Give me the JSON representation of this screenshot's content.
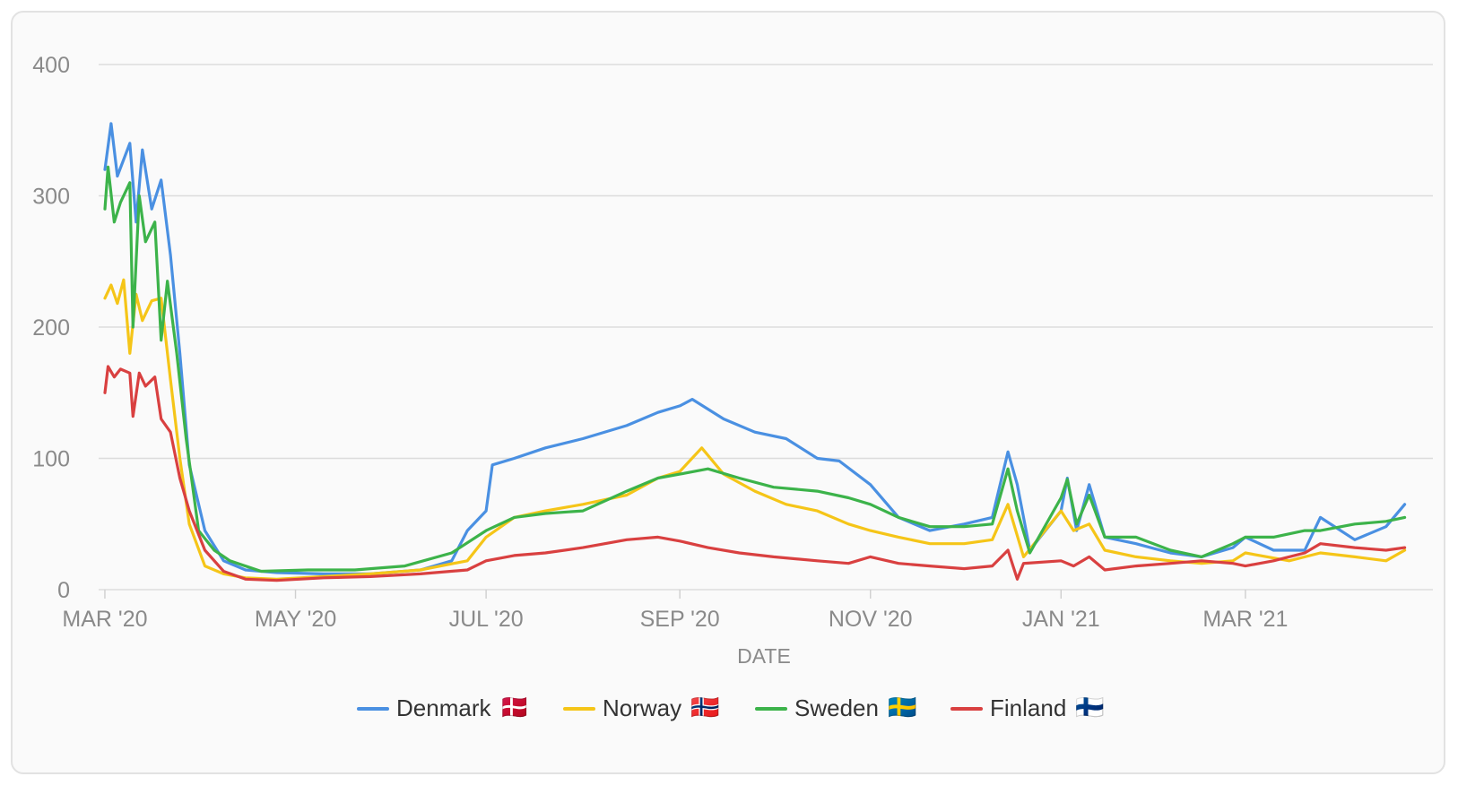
{
  "chart_data": {
    "type": "line",
    "xlabel": "DATE",
    "ylabel": "",
    "ylim": [
      0,
      400
    ],
    "yticks": [
      "0",
      "100",
      "200",
      "300",
      "400"
    ],
    "xlim": [
      "2020-02-28",
      "2021-04-30"
    ],
    "xticks": [
      {
        "date": "2020-03-01",
        "label": "MAR '20"
      },
      {
        "date": "2020-05-01",
        "label": "MAY '20"
      },
      {
        "date": "2020-07-01",
        "label": "JUL '20"
      },
      {
        "date": "2020-09-01",
        "label": "SEP '20"
      },
      {
        "date": "2020-11-01",
        "label": "NOV '20"
      },
      {
        "date": "2021-01-01",
        "label": "JAN '21"
      },
      {
        "date": "2021-03-01",
        "label": "MAR '21"
      }
    ],
    "grid": true,
    "legend_position": "bottom",
    "series": [
      {
        "name": "Denmark",
        "flag": "🇩🇰",
        "color": "#4a90e2",
        "points": [
          [
            "2020-03-01",
            320
          ],
          [
            "2020-03-03",
            355
          ],
          [
            "2020-03-05",
            315
          ],
          [
            "2020-03-09",
            340
          ],
          [
            "2020-03-11",
            280
          ],
          [
            "2020-03-13",
            335
          ],
          [
            "2020-03-16",
            290
          ],
          [
            "2020-03-19",
            312
          ],
          [
            "2020-03-22",
            255
          ],
          [
            "2020-03-25",
            180
          ],
          [
            "2020-03-28",
            95
          ],
          [
            "2020-04-02",
            45
          ],
          [
            "2020-04-08",
            22
          ],
          [
            "2020-04-15",
            15
          ],
          [
            "2020-04-25",
            13
          ],
          [
            "2020-05-10",
            12
          ],
          [
            "2020-05-25",
            12
          ],
          [
            "2020-06-10",
            15
          ],
          [
            "2020-06-20",
            22
          ],
          [
            "2020-06-25",
            45
          ],
          [
            "2020-07-01",
            60
          ],
          [
            "2020-07-03",
            95
          ],
          [
            "2020-07-10",
            100
          ],
          [
            "2020-07-20",
            108
          ],
          [
            "2020-08-01",
            115
          ],
          [
            "2020-08-15",
            125
          ],
          [
            "2020-08-25",
            135
          ],
          [
            "2020-09-01",
            140
          ],
          [
            "2020-09-05",
            145
          ],
          [
            "2020-09-15",
            130
          ],
          [
            "2020-09-25",
            120
          ],
          [
            "2020-10-05",
            115
          ],
          [
            "2020-10-15",
            100
          ],
          [
            "2020-10-22",
            98
          ],
          [
            "2020-11-01",
            80
          ],
          [
            "2020-11-10",
            55
          ],
          [
            "2020-11-20",
            45
          ],
          [
            "2020-12-01",
            50
          ],
          [
            "2020-12-10",
            55
          ],
          [
            "2020-12-15",
            105
          ],
          [
            "2020-12-18",
            80
          ],
          [
            "2020-12-22",
            30
          ],
          [
            "2021-01-01",
            60
          ],
          [
            "2021-01-03",
            85
          ],
          [
            "2021-01-06",
            45
          ],
          [
            "2021-01-10",
            80
          ],
          [
            "2021-01-15",
            40
          ],
          [
            "2021-01-25",
            35
          ],
          [
            "2021-02-05",
            28
          ],
          [
            "2021-02-15",
            25
          ],
          [
            "2021-02-25",
            32
          ],
          [
            "2021-03-01",
            40
          ],
          [
            "2021-03-10",
            30
          ],
          [
            "2021-03-20",
            30
          ],
          [
            "2021-03-25",
            55
          ],
          [
            "2021-04-05",
            38
          ],
          [
            "2021-04-15",
            48
          ],
          [
            "2021-04-21",
            65
          ]
        ]
      },
      {
        "name": "Norway",
        "flag": "🇳🇴",
        "color": "#f5c518",
        "points": [
          [
            "2020-03-01",
            222
          ],
          [
            "2020-03-03",
            232
          ],
          [
            "2020-03-05",
            218
          ],
          [
            "2020-03-07",
            236
          ],
          [
            "2020-03-09",
            180
          ],
          [
            "2020-03-11",
            225
          ],
          [
            "2020-03-13",
            205
          ],
          [
            "2020-03-16",
            220
          ],
          [
            "2020-03-19",
            222
          ],
          [
            "2020-03-22",
            160
          ],
          [
            "2020-03-25",
            100
          ],
          [
            "2020-03-28",
            50
          ],
          [
            "2020-04-02",
            18
          ],
          [
            "2020-04-08",
            12
          ],
          [
            "2020-04-15",
            9
          ],
          [
            "2020-04-25",
            8
          ],
          [
            "2020-05-10",
            10
          ],
          [
            "2020-05-25",
            12
          ],
          [
            "2020-06-10",
            15
          ],
          [
            "2020-06-25",
            22
          ],
          [
            "2020-07-01",
            40
          ],
          [
            "2020-07-10",
            55
          ],
          [
            "2020-07-20",
            60
          ],
          [
            "2020-08-01",
            65
          ],
          [
            "2020-08-15",
            72
          ],
          [
            "2020-08-25",
            85
          ],
          [
            "2020-09-01",
            90
          ],
          [
            "2020-09-08",
            108
          ],
          [
            "2020-09-15",
            88
          ],
          [
            "2020-09-25",
            75
          ],
          [
            "2020-10-05",
            65
          ],
          [
            "2020-10-15",
            60
          ],
          [
            "2020-10-25",
            50
          ],
          [
            "2020-11-01",
            45
          ],
          [
            "2020-11-10",
            40
          ],
          [
            "2020-11-20",
            35
          ],
          [
            "2020-12-01",
            35
          ],
          [
            "2020-12-10",
            38
          ],
          [
            "2020-12-15",
            65
          ],
          [
            "2020-12-20",
            25
          ],
          [
            "2021-01-01",
            60
          ],
          [
            "2021-01-05",
            45
          ],
          [
            "2021-01-10",
            50
          ],
          [
            "2021-01-15",
            30
          ],
          [
            "2021-01-25",
            25
          ],
          [
            "2021-02-05",
            22
          ],
          [
            "2021-02-15",
            20
          ],
          [
            "2021-02-25",
            22
          ],
          [
            "2021-03-01",
            28
          ],
          [
            "2021-03-15",
            22
          ],
          [
            "2021-03-25",
            28
          ],
          [
            "2021-04-05",
            25
          ],
          [
            "2021-04-15",
            22
          ],
          [
            "2021-04-21",
            30
          ]
        ]
      },
      {
        "name": "Sweden",
        "flag": "🇸🇪",
        "color": "#3cb34a",
        "points": [
          [
            "2020-03-01",
            290
          ],
          [
            "2020-03-02",
            322
          ],
          [
            "2020-03-04",
            280
          ],
          [
            "2020-03-06",
            295
          ],
          [
            "2020-03-09",
            310
          ],
          [
            "2020-03-10",
            200
          ],
          [
            "2020-03-12",
            300
          ],
          [
            "2020-03-14",
            265
          ],
          [
            "2020-03-17",
            280
          ],
          [
            "2020-03-19",
            190
          ],
          [
            "2020-03-21",
            235
          ],
          [
            "2020-03-24",
            180
          ],
          [
            "2020-03-27",
            115
          ],
          [
            "2020-03-31",
            45
          ],
          [
            "2020-04-05",
            30
          ],
          [
            "2020-04-10",
            22
          ],
          [
            "2020-04-20",
            14
          ],
          [
            "2020-05-05",
            15
          ],
          [
            "2020-05-20",
            15
          ],
          [
            "2020-06-05",
            18
          ],
          [
            "2020-06-20",
            28
          ],
          [
            "2020-07-01",
            45
          ],
          [
            "2020-07-10",
            55
          ],
          [
            "2020-07-20",
            58
          ],
          [
            "2020-08-01",
            60
          ],
          [
            "2020-08-15",
            75
          ],
          [
            "2020-08-25",
            85
          ],
          [
            "2020-09-01",
            88
          ],
          [
            "2020-09-10",
            92
          ],
          [
            "2020-09-20",
            85
          ],
          [
            "2020-10-01",
            78
          ],
          [
            "2020-10-15",
            75
          ],
          [
            "2020-10-25",
            70
          ],
          [
            "2020-11-01",
            65
          ],
          [
            "2020-11-10",
            55
          ],
          [
            "2020-11-20",
            48
          ],
          [
            "2020-12-01",
            48
          ],
          [
            "2020-12-10",
            50
          ],
          [
            "2020-12-15",
            92
          ],
          [
            "2020-12-18",
            60
          ],
          [
            "2020-12-22",
            28
          ],
          [
            "2021-01-01",
            70
          ],
          [
            "2021-01-03",
            84
          ],
          [
            "2021-01-06",
            50
          ],
          [
            "2021-01-10",
            72
          ],
          [
            "2021-01-15",
            40
          ],
          [
            "2021-01-25",
            40
          ],
          [
            "2021-02-05",
            30
          ],
          [
            "2021-02-15",
            25
          ],
          [
            "2021-02-25",
            35
          ],
          [
            "2021-03-01",
            40
          ],
          [
            "2021-03-10",
            40
          ],
          [
            "2021-03-20",
            45
          ],
          [
            "2021-03-25",
            45
          ],
          [
            "2021-04-05",
            50
          ],
          [
            "2021-04-15",
            52
          ],
          [
            "2021-04-21",
            55
          ]
        ]
      },
      {
        "name": "Finland",
        "flag": "🇫🇮",
        "color": "#d94040",
        "points": [
          [
            "2020-03-01",
            150
          ],
          [
            "2020-03-02",
            170
          ],
          [
            "2020-03-04",
            162
          ],
          [
            "2020-03-06",
            168
          ],
          [
            "2020-03-09",
            165
          ],
          [
            "2020-03-10",
            132
          ],
          [
            "2020-03-12",
            165
          ],
          [
            "2020-03-14",
            155
          ],
          [
            "2020-03-17",
            162
          ],
          [
            "2020-03-19",
            130
          ],
          [
            "2020-03-22",
            120
          ],
          [
            "2020-03-25",
            85
          ],
          [
            "2020-03-28",
            60
          ],
          [
            "2020-04-02",
            30
          ],
          [
            "2020-04-08",
            14
          ],
          [
            "2020-04-15",
            8
          ],
          [
            "2020-04-25",
            7
          ],
          [
            "2020-05-10",
            9
          ],
          [
            "2020-05-25",
            10
          ],
          [
            "2020-06-10",
            12
          ],
          [
            "2020-06-25",
            15
          ],
          [
            "2020-07-01",
            22
          ],
          [
            "2020-07-10",
            26
          ],
          [
            "2020-07-20",
            28
          ],
          [
            "2020-08-01",
            32
          ],
          [
            "2020-08-15",
            38
          ],
          [
            "2020-08-25",
            40
          ],
          [
            "2020-09-01",
            37
          ],
          [
            "2020-09-10",
            32
          ],
          [
            "2020-09-20",
            28
          ],
          [
            "2020-10-01",
            25
          ],
          [
            "2020-10-15",
            22
          ],
          [
            "2020-10-25",
            20
          ],
          [
            "2020-11-01",
            25
          ],
          [
            "2020-11-10",
            20
          ],
          [
            "2020-11-20",
            18
          ],
          [
            "2020-12-01",
            16
          ],
          [
            "2020-12-10",
            18
          ],
          [
            "2020-12-15",
            30
          ],
          [
            "2020-12-18",
            8
          ],
          [
            "2020-12-20",
            20
          ],
          [
            "2021-01-01",
            22
          ],
          [
            "2021-01-05",
            18
          ],
          [
            "2021-01-10",
            25
          ],
          [
            "2021-01-15",
            15
          ],
          [
            "2021-01-25",
            18
          ],
          [
            "2021-02-05",
            20
          ],
          [
            "2021-02-15",
            22
          ],
          [
            "2021-02-25",
            20
          ],
          [
            "2021-03-01",
            18
          ],
          [
            "2021-03-10",
            22
          ],
          [
            "2021-03-20",
            28
          ],
          [
            "2021-03-25",
            35
          ],
          [
            "2021-04-05",
            32
          ],
          [
            "2021-04-15",
            30
          ],
          [
            "2021-04-21",
            32
          ]
        ]
      }
    ]
  }
}
